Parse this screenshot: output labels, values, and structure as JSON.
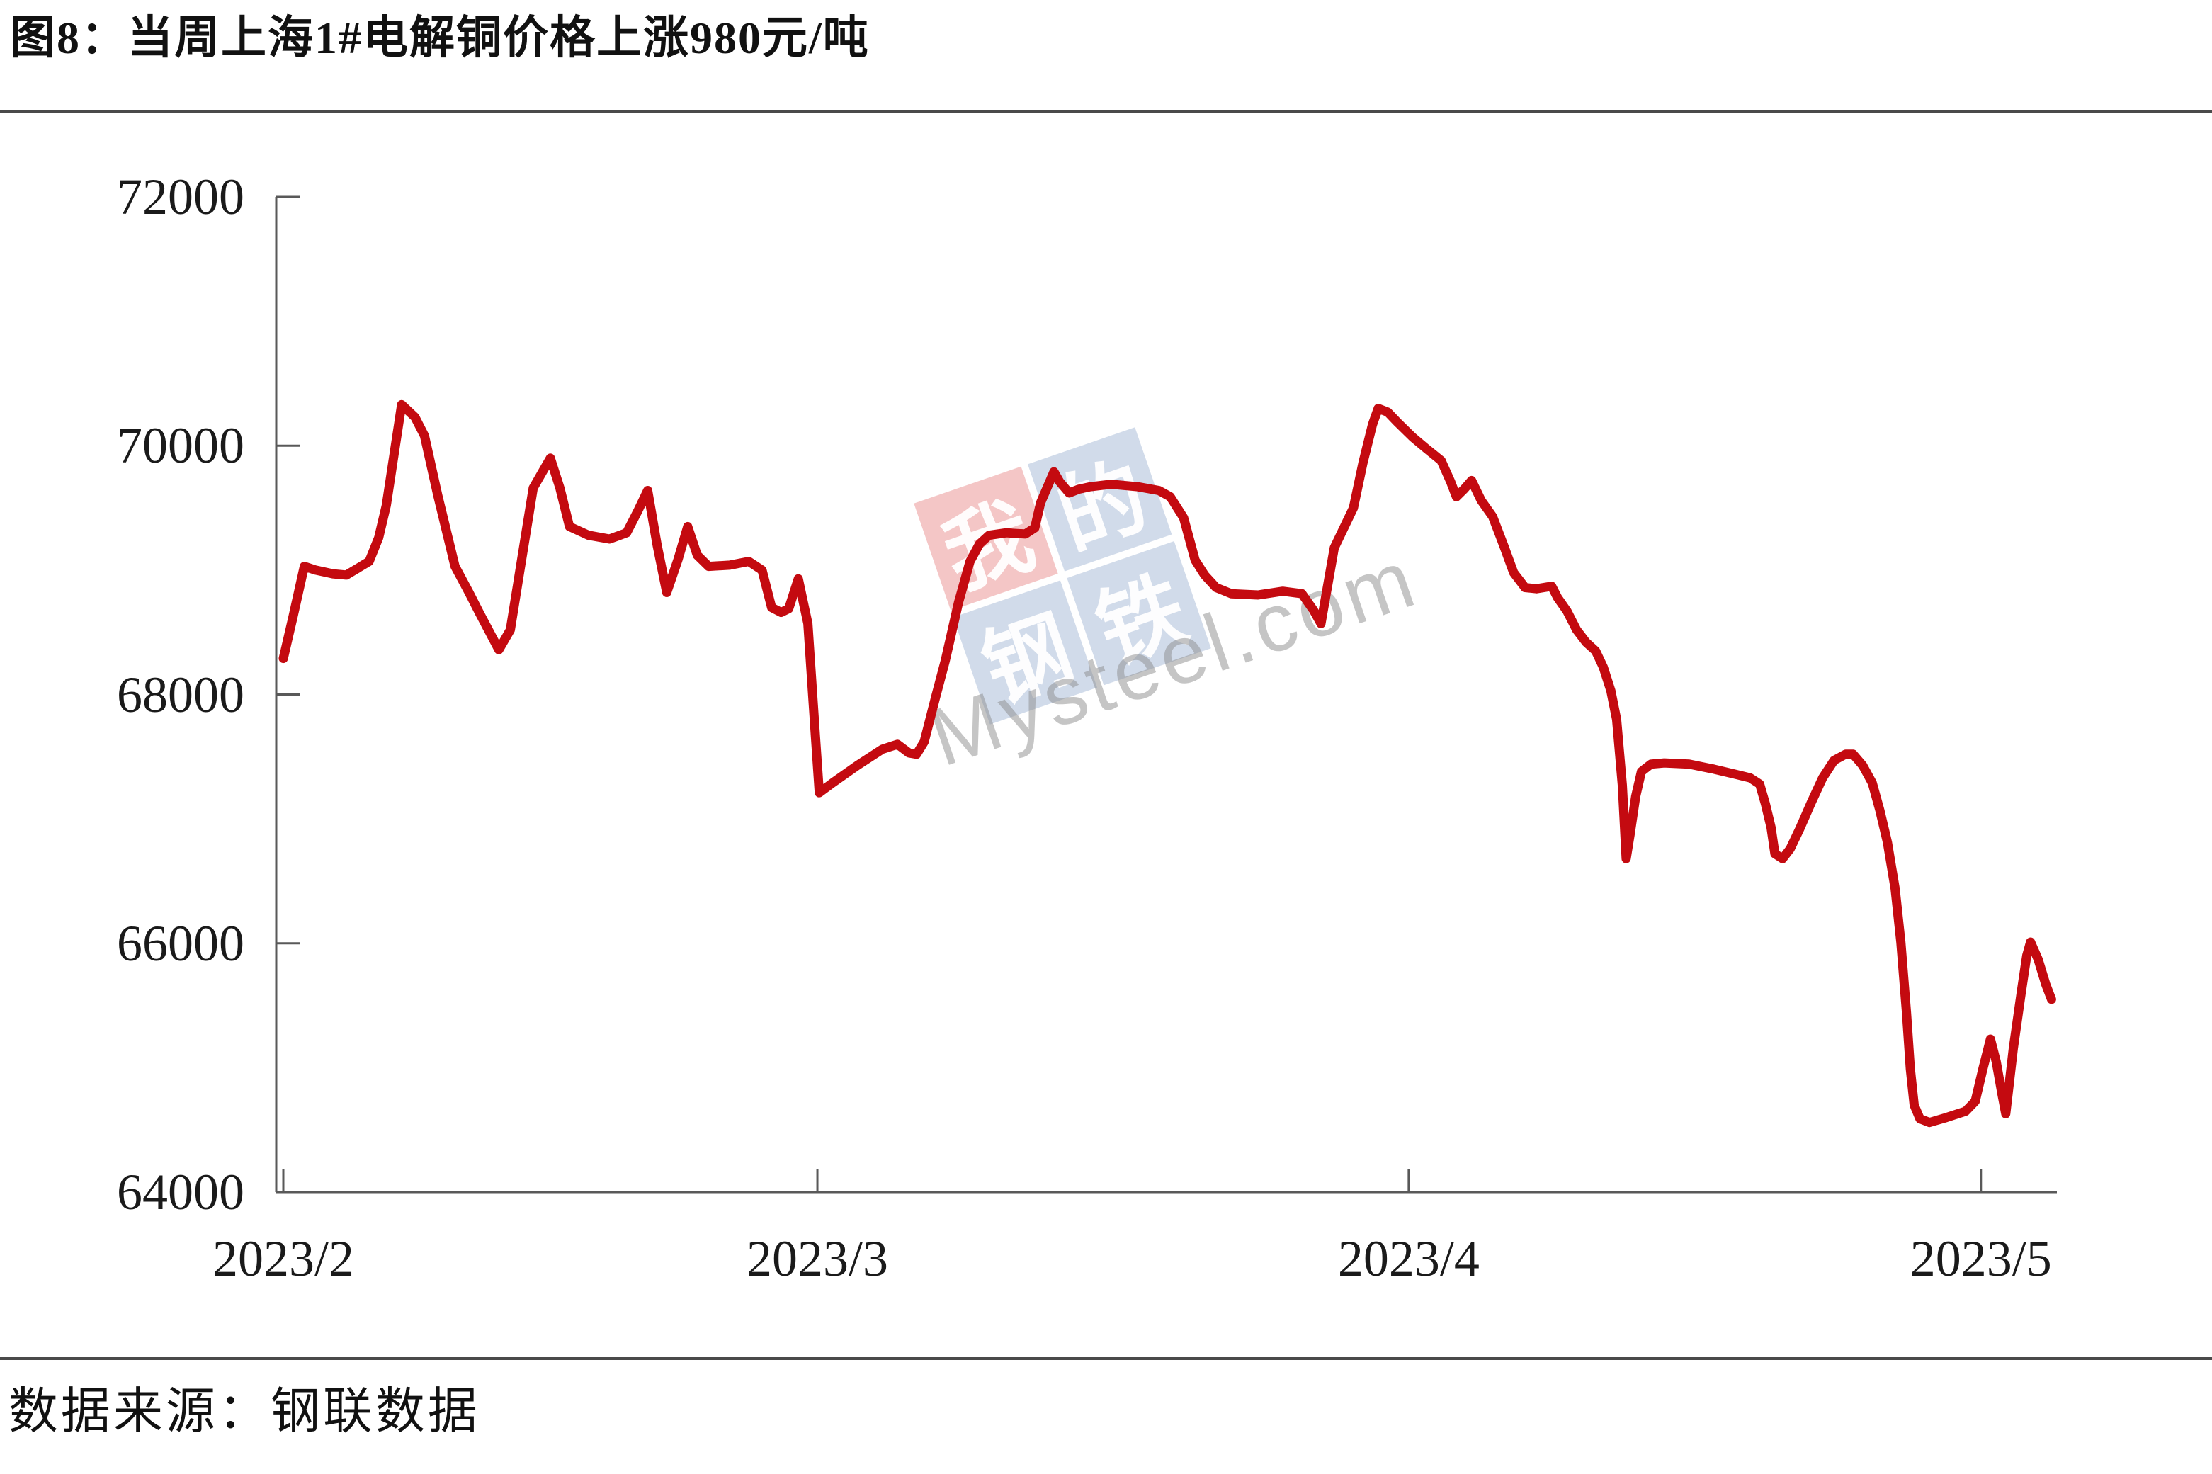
{
  "title": "图8：当周上海1#电解铜价格上涨980元/吨",
  "source": "数据来源：钢联数据",
  "watermark": {
    "logo_chars": [
      "我",
      "的",
      "钢",
      "铁"
    ],
    "text": "Mysteel.com"
  },
  "colors": {
    "line": "#c40a10",
    "axis": "#595959",
    "separator": "#4a4a4a",
    "label": "#1a1a1a"
  },
  "chart_data": {
    "type": "line",
    "title": "当周上海1#电解铜价格上涨980元/吨",
    "series": [
      {
        "name": "上海1#电解铜价格（元/吨）",
        "x_unit": "days since 2023-02-01",
        "points": [
          [
            0,
            68290
          ],
          [
            0.5,
            68620
          ],
          [
            1.1,
            69030
          ],
          [
            1.7,
            69000
          ],
          [
            2.6,
            68970
          ],
          [
            3.3,
            68960
          ],
          [
            4.5,
            69070
          ],
          [
            5,
            69260
          ],
          [
            5.4,
            69520
          ],
          [
            6.2,
            70330
          ],
          [
            6.9,
            70230
          ],
          [
            7.4,
            70080
          ],
          [
            8.1,
            69600
          ],
          [
            9,
            69030
          ],
          [
            9.7,
            68830
          ],
          [
            10.3,
            68650
          ],
          [
            11.3,
            68360
          ],
          [
            11.9,
            68520
          ],
          [
            12.5,
            69090
          ],
          [
            13.1,
            69660
          ],
          [
            14,
            69900
          ],
          [
            14.5,
            69660
          ],
          [
            15,
            69350
          ],
          [
            16,
            69280
          ],
          [
            17.1,
            69250
          ],
          [
            18,
            69300
          ],
          [
            18.6,
            69480
          ],
          [
            19.1,
            69640
          ],
          [
            19.6,
            69200
          ],
          [
            20.1,
            68820
          ],
          [
            20.7,
            69090
          ],
          [
            21.2,
            69350
          ],
          [
            21.7,
            69120
          ],
          [
            22.3,
            69030
          ],
          [
            23.4,
            69040
          ],
          [
            24.4,
            69070
          ],
          [
            25.1,
            69000
          ],
          [
            25.6,
            68700
          ],
          [
            26.1,
            68660
          ],
          [
            26.5,
            68690
          ],
          [
            27,
            68930
          ],
          [
            27.5,
            68570
          ],
          [
            27.9,
            67660
          ],
          [
            28.1,
            67210
          ],
          [
            28.8,
            67290
          ],
          [
            30.1,
            67430
          ],
          [
            31.4,
            67560
          ],
          [
            32.2,
            67600
          ],
          [
            32.8,
            67530
          ],
          [
            33.2,
            67520
          ],
          [
            33.6,
            67620
          ],
          [
            34.2,
            67980
          ],
          [
            34.7,
            68270
          ],
          [
            35.4,
            68740
          ],
          [
            36,
            69070
          ],
          [
            36.5,
            69210
          ],
          [
            37,
            69280
          ],
          [
            37.9,
            69300
          ],
          [
            38.9,
            69290
          ],
          [
            39.4,
            69340
          ],
          [
            39.7,
            69540
          ],
          [
            40.4,
            69790
          ],
          [
            40.7,
            69710
          ],
          [
            41.2,
            69620
          ],
          [
            41.7,
            69650
          ],
          [
            42.3,
            69670
          ],
          [
            43.4,
            69690
          ],
          [
            44.8,
            69670
          ],
          [
            45.9,
            69640
          ],
          [
            46.5,
            69590
          ],
          [
            47.2,
            69420
          ],
          [
            47.8,
            69080
          ],
          [
            48.3,
            68960
          ],
          [
            48.9,
            68860
          ],
          [
            49.7,
            68810
          ],
          [
            51.1,
            68800
          ],
          [
            52.4,
            68830
          ],
          [
            53.4,
            68810
          ],
          [
            54,
            68680
          ],
          [
            54.4,
            68570
          ],
          [
            55.1,
            69180
          ],
          [
            55.6,
            69340
          ],
          [
            56.1,
            69500
          ],
          [
            56.6,
            69860
          ],
          [
            57.1,
            70170
          ],
          [
            57.4,
            70300
          ],
          [
            57.9,
            70270
          ],
          [
            58.4,
            70190
          ],
          [
            59.2,
            70070
          ],
          [
            59.9,
            69980
          ],
          [
            60.7,
            69880
          ],
          [
            61.2,
            69710
          ],
          [
            61.5,
            69590
          ],
          [
            61.9,
            69650
          ],
          [
            62.3,
            69720
          ],
          [
            62.8,
            69560
          ],
          [
            63.4,
            69430
          ],
          [
            64,
            69190
          ],
          [
            64.5,
            68980
          ],
          [
            65.1,
            68860
          ],
          [
            65.7,
            68850
          ],
          [
            66.5,
            68870
          ],
          [
            66.8,
            68780
          ],
          [
            67.3,
            68670
          ],
          [
            67.8,
            68520
          ],
          [
            68.3,
            68420
          ],
          [
            68.8,
            68350
          ],
          [
            69.2,
            68220
          ],
          [
            69.6,
            68030
          ],
          [
            69.9,
            67800
          ],
          [
            70.2,
            67270
          ],
          [
            70.4,
            66680
          ],
          [
            70.6,
            66870
          ],
          [
            70.9,
            67180
          ],
          [
            71.2,
            67380
          ],
          [
            71.7,
            67440
          ],
          [
            72.4,
            67450
          ],
          [
            73.7,
            67440
          ],
          [
            75,
            67400
          ],
          [
            76.1,
            67360
          ],
          [
            76.9,
            67330
          ],
          [
            77.4,
            67280
          ],
          [
            77.7,
            67120
          ],
          [
            78,
            66930
          ],
          [
            78.2,
            66720
          ],
          [
            78.6,
            66680
          ],
          [
            79,
            66760
          ],
          [
            79.5,
            66920
          ],
          [
            80.1,
            67130
          ],
          [
            80.7,
            67330
          ],
          [
            81.3,
            67470
          ],
          [
            81.9,
            67520
          ],
          [
            82.3,
            67520
          ],
          [
            82.8,
            67430
          ],
          [
            83.3,
            67290
          ],
          [
            83.7,
            67070
          ],
          [
            84.1,
            66810
          ],
          [
            84.5,
            66440
          ],
          [
            84.8,
            66010
          ],
          [
            85.1,
            65440
          ],
          [
            85.3,
            64990
          ],
          [
            85.5,
            64700
          ],
          [
            85.8,
            64590
          ],
          [
            86.3,
            64560
          ],
          [
            87.2,
            64600
          ],
          [
            88.2,
            64650
          ],
          [
            88.7,
            64730
          ],
          [
            89.1,
            64990
          ],
          [
            89.5,
            65230
          ],
          [
            89.8,
            65050
          ],
          [
            90.1,
            64790
          ],
          [
            90.3,
            64630
          ],
          [
            90.7,
            65160
          ],
          [
            91.1,
            65590
          ],
          [
            91.4,
            65900
          ],
          [
            91.6,
            66010
          ],
          [
            92,
            65870
          ],
          [
            92.4,
            65670
          ],
          [
            92.7,
            65550
          ]
        ]
      }
    ],
    "x_axis": {
      "ticks": [
        {
          "label": "2023/2",
          "d": 0
        },
        {
          "label": "2023/3",
          "d": 28
        },
        {
          "label": "2023/4",
          "d": 59
        },
        {
          "label": "2023/5",
          "d": 89
        }
      ]
    },
    "y_axis": {
      "min": 64000,
      "max": 72000,
      "tick_step": 2000,
      "ticks": [
        72000,
        70000,
        68000,
        66000,
        64000
      ]
    },
    "grid": false,
    "legend": false,
    "line_color": "#c40a10"
  }
}
